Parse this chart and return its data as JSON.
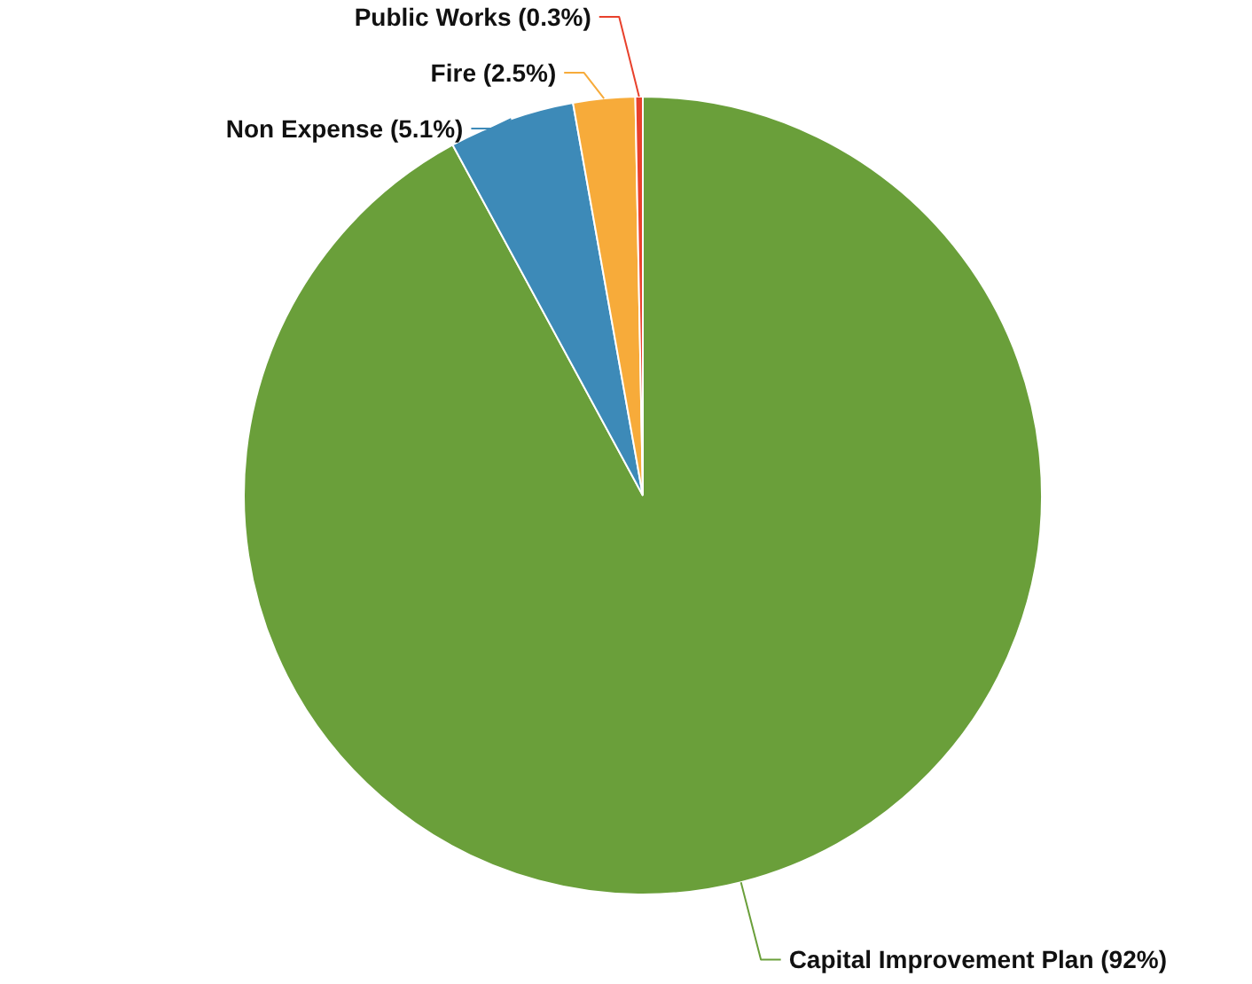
{
  "chart_data": {
    "type": "pie",
    "categories": [
      "Capital Improvement Plan",
      "Non Expense",
      "Fire",
      "Public Works"
    ],
    "values": [
      92,
      5.1,
      2.5,
      0.3
    ],
    "value_labels": [
      "(92%)",
      "(5.1%)",
      "(2.5%)",
      "(0.3%)"
    ],
    "colors": [
      "#6a9f3a",
      "#3d8ab8",
      "#f7ab3a",
      "#e8412c"
    ]
  }
}
